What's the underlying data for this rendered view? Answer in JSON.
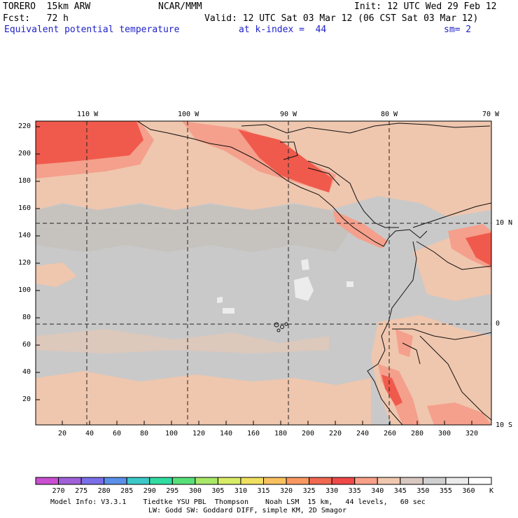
{
  "header": {
    "model": "TORERO  15km ARW",
    "center": "NCAR/MMM",
    "init": "Init: 12 UTC Wed 29 Feb 12",
    "fcst": "Fcst:   72 h",
    "valid": "Valid: 12 UTC Sat 03 Mar 12 (06 CST Sat 03 Mar 12)",
    "field": "Equivalent potential temperature",
    "level": "at k-index =  44",
    "smooth": "sm= 2"
  },
  "top_lon_labels": [
    "110 W",
    "100 W",
    "90 W",
    "80 W",
    "70 W"
  ],
  "right_lat_labels": [
    "10 N",
    "0",
    "10 S"
  ],
  "y_axis_labels": [
    "220",
    "200",
    "180",
    "160",
    "140",
    "120",
    "100",
    "80",
    "60",
    "40",
    "20"
  ],
  "x_axis_labels": [
    "20",
    "40",
    "60",
    "80",
    "100",
    "120",
    "140",
    "160",
    "180",
    "200",
    "220",
    "240",
    "260",
    "280",
    "300",
    "320"
  ],
  "colorbar": {
    "labels": [
      "270",
      "275",
      "280",
      "285",
      "290",
      "295",
      "300",
      "305",
      "310",
      "315",
      "320",
      "325",
      "330",
      "335",
      "340",
      "345",
      "350",
      "355",
      "360",
      "K"
    ],
    "colors": [
      "#c84fd0",
      "#a060d8",
      "#7a6ee8",
      "#5a90e8",
      "#3cc8c8",
      "#30dca0",
      "#58e078",
      "#a8e868",
      "#d8ec68",
      "#f0e060",
      "#f8c060",
      "#f89860",
      "#f06850",
      "#f04848",
      "#f8a088",
      "#f0c8b0",
      "#d8c8c0",
      "#d0d0d0",
      "#ebebeb",
      "#ffffff"
    ]
  },
  "map_colors": {
    "base_gray": "#c9c9c9",
    "dark_gray": "#c5c0bc",
    "peach": "#efc6ae",
    "salmon": "#f4a08c",
    "red": "#f05a4c",
    "white": "#ececec"
  },
  "footer": {
    "line1": "Model Info: V3.3.1    Tiedtke YSU PBL  Thompson    Noah LSM  15 km,   44 levels,   60 sec",
    "line2": "LW: Godd SW: Goddard DIFF, simple KM, 2D Smagor"
  }
}
